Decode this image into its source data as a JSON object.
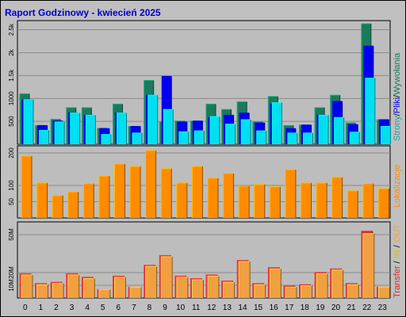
{
  "title": "Raport Godzinowy -  kwiecień 2025",
  "colors": {
    "background": "#c0c0c0",
    "title": "#0000cc",
    "pages": "#1a7a5c",
    "files": "#0000ee",
    "hits": "#00e0f0",
    "visits": "#ff8c00",
    "traffic_in": "#d42a2a",
    "traffic_out": "#f0a040"
  },
  "chart_data": [
    {
      "type": "bar",
      "ylabel_parts": [
        "Strony",
        "Pliki",
        "Wywołania"
      ],
      "ylim": [
        0,
        2700
      ],
      "yticks": [
        "500",
        "1000",
        "1.5k",
        "2k",
        "2.5k"
      ],
      "categories": [
        "0",
        "1",
        "2",
        "3",
        "4",
        "5",
        "6",
        "7",
        "8",
        "9",
        "10",
        "11",
        "12",
        "13",
        "14",
        "15",
        "16",
        "17",
        "18",
        "19",
        "20",
        "21",
        "22",
        "23"
      ],
      "series": [
        {
          "name": "Strony",
          "values": [
            1130,
            420,
            560,
            820,
            820,
            360,
            900,
            400,
            1430,
            500,
            520,
            520,
            900,
            780,
            950,
            500,
            1070,
            420,
            430,
            820,
            1100,
            480,
            2700,
            550
          ]
        },
        {
          "name": "Pliki",
          "values": [
            1000,
            420,
            520,
            700,
            650,
            350,
            700,
            400,
            1100,
            1520,
            500,
            520,
            600,
            650,
            700,
            480,
            900,
            350,
            430,
            650,
            960,
            440,
            2200,
            550
          ]
        },
        {
          "name": "Wywołania",
          "values": [
            1000,
            310,
            500,
            700,
            650,
            220,
            700,
            250,
            1100,
            780,
            280,
            300,
            620,
            450,
            550,
            300,
            930,
            250,
            250,
            650,
            600,
            270,
            1480,
            400
          ]
        }
      ]
    },
    {
      "type": "bar",
      "ylabel": "Lokalizacje",
      "ylim": [
        0,
        222
      ],
      "yticks": [
        "50",
        "100",
        "200"
      ],
      "categories": [
        "0",
        "1",
        "2",
        "3",
        "4",
        "5",
        "6",
        "7",
        "8",
        "9",
        "10",
        "11",
        "12",
        "13",
        "14",
        "15",
        "16",
        "17",
        "18",
        "19",
        "20",
        "21",
        "22",
        "23"
      ],
      "series": [
        {
          "name": "Lokalizacje",
          "values": [
            195,
            110,
            70,
            82,
            108,
            132,
            170,
            162,
            212,
            155,
            110,
            162,
            125,
            140,
            100,
            105,
            98,
            152,
            110,
            110,
            128,
            85,
            108,
            92
          ]
        }
      ]
    },
    {
      "type": "bar",
      "ylabel_parts": [
        "Transfer",
        "IN",
        "OUT"
      ],
      "ylabel_separator": " / ",
      "ylim": [
        0,
        60
      ],
      "yticks": [
        "10M",
        "20M",
        "50M"
      ],
      "categories": [
        "0",
        "1",
        "2",
        "3",
        "4",
        "5",
        "6",
        "7",
        "8",
        "9",
        "10",
        "11",
        "12",
        "13",
        "14",
        "15",
        "16",
        "17",
        "18",
        "19",
        "20",
        "21",
        "22",
        "23"
      ],
      "series": [
        {
          "name": "IN",
          "values": [
            20,
            12,
            13,
            20,
            17,
            7,
            18,
            9,
            27,
            35,
            18,
            16,
            19,
            14,
            31,
            12,
            25,
            10,
            11,
            21,
            24,
            12,
            55,
            9
          ]
        },
        {
          "name": "OUT",
          "values": [
            19,
            11,
            12,
            19,
            16,
            7,
            17,
            9,
            26,
            34,
            17,
            15,
            18,
            13,
            30,
            11,
            24,
            9,
            10,
            20,
            23,
            11,
            53,
            9
          ]
        }
      ]
    }
  ]
}
